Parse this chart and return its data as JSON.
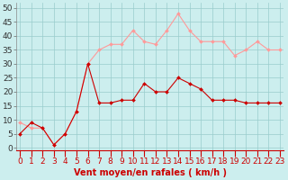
{
  "x": [
    0,
    1,
    2,
    3,
    4,
    5,
    6,
    7,
    8,
    9,
    10,
    11,
    12,
    13,
    14,
    15,
    16,
    17,
    18,
    19,
    20,
    21,
    22,
    23
  ],
  "wind_avg": [
    5,
    9,
    7,
    1,
    5,
    13,
    30,
    16,
    16,
    17,
    17,
    23,
    20,
    20,
    25,
    23,
    21,
    17,
    17,
    17,
    16,
    16,
    16,
    16
  ],
  "wind_gust": [
    9,
    7,
    7,
    1,
    5,
    13,
    30,
    35,
    37,
    37,
    42,
    38,
    37,
    42,
    48,
    42,
    38,
    38,
    38,
    33,
    35,
    38,
    35,
    35
  ],
  "avg_color": "#cc0000",
  "gust_color": "#ff9999",
  "bg_color": "#cceeee",
  "grid_color": "#99cccc",
  "xlabel": "Vent moyen/en rafales ( km/h )",
  "yticks": [
    0,
    5,
    10,
    15,
    20,
    25,
    30,
    35,
    40,
    45,
    50
  ],
  "ylim": [
    -1,
    52
  ],
  "xlim": [
    -0.3,
    23.3
  ],
  "xlabel_fontsize": 7,
  "tick_fontsize": 6.5
}
